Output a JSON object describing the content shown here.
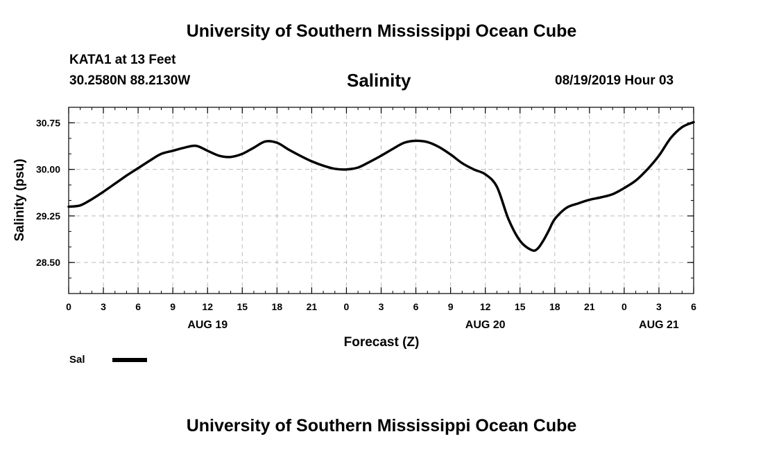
{
  "header": {
    "title_top": "University of Southern Mississippi Ocean Cube",
    "station": "KATA1 at 13 Feet",
    "coords": "30.2580N 88.2130W",
    "datetime": "08/19/2019 Hour 03"
  },
  "footer": {
    "title_bottom": "University of Southern Mississippi Ocean Cube"
  },
  "legend": {
    "label": "Sal"
  },
  "colors": {
    "line": "#000000",
    "grid": "#bbbbbb",
    "axis": "#000000"
  },
  "chart_data": {
    "type": "line",
    "title": "Salinity",
    "xlabel": "Forecast (Z)",
    "ylabel": "Salinity (psu)",
    "xlim": [
      0,
      54
    ],
    "ylim": [
      28.0,
      31.0
    ],
    "y_ticks": [
      28.5,
      29.25,
      30.0,
      30.75
    ],
    "y_tick_labels": [
      "28.50",
      "29.25",
      "30.00",
      "30.75"
    ],
    "x_ticks": [
      0,
      3,
      6,
      9,
      12,
      15,
      18,
      21,
      24,
      27,
      30,
      33,
      36,
      39,
      42,
      45,
      48,
      51,
      54
    ],
    "x_tick_labels": [
      "0",
      "3",
      "6",
      "9",
      "12",
      "15",
      "18",
      "21",
      "0",
      "3",
      "6",
      "9",
      "12",
      "15",
      "18",
      "21",
      "0",
      "3",
      "6"
    ],
    "date_labels": [
      {
        "x": 12,
        "text": "AUG 19"
      },
      {
        "x": 36,
        "text": "AUG 20"
      },
      {
        "x": 51,
        "text": "AUG 21"
      }
    ],
    "grid": true,
    "series": [
      {
        "name": "Sal",
        "x": [
          0,
          1,
          2,
          3,
          4,
          5,
          6,
          7,
          8,
          9,
          10,
          11,
          12,
          13,
          14,
          15,
          16,
          17,
          18,
          19,
          20,
          21,
          22,
          23,
          24,
          25,
          26,
          27,
          28,
          29,
          30,
          31,
          32,
          33,
          34,
          35,
          36,
          37,
          38,
          39,
          40,
          40.5,
          41,
          41.5,
          42,
          43,
          44,
          45,
          46,
          47,
          48,
          49,
          50,
          51,
          52,
          53,
          54
        ],
        "values": [
          29.4,
          29.42,
          29.52,
          29.64,
          29.77,
          29.9,
          30.02,
          30.14,
          30.25,
          30.3,
          30.35,
          30.38,
          30.3,
          30.22,
          30.2,
          30.25,
          30.35,
          30.45,
          30.43,
          30.32,
          30.22,
          30.13,
          30.06,
          30.01,
          30.0,
          30.03,
          30.12,
          30.22,
          30.33,
          30.43,
          30.46,
          30.44,
          30.36,
          30.24,
          30.1,
          30.0,
          29.92,
          29.72,
          29.2,
          28.85,
          28.7,
          28.72,
          28.85,
          29.02,
          29.2,
          29.38,
          29.45,
          29.51,
          29.55,
          29.6,
          29.7,
          29.82,
          30.0,
          30.22,
          30.5,
          30.68,
          30.76
        ]
      }
    ]
  }
}
